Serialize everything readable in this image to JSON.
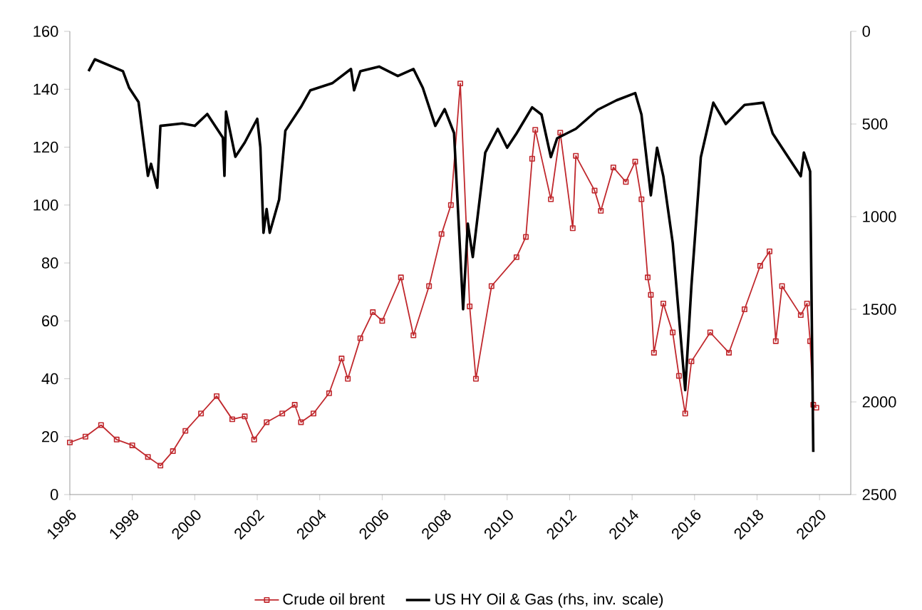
{
  "chart_data": {
    "type": "line",
    "xlim": [
      1996,
      2021
    ],
    "xticks": [
      1996,
      1998,
      2000,
      2002,
      2004,
      2006,
      2008,
      2010,
      2012,
      2014,
      2016,
      2018,
      2020
    ],
    "ylim": [
      0,
      160
    ],
    "yticks": [
      0,
      20,
      40,
      60,
      80,
      100,
      120,
      140,
      160
    ],
    "y2lim": [
      2500,
      0
    ],
    "y2ticks": [
      0,
      500,
      1000,
      1500,
      2000,
      2500
    ],
    "grid": false,
    "legend": "bottom",
    "series": [
      {
        "name": "Crude oil brent",
        "color": "#c0282d",
        "marker": "square",
        "x": [
          1996.0,
          1996.5,
          1997.0,
          1997.5,
          1998.0,
          1998.5,
          1998.9,
          1999.3,
          1999.7,
          2000.2,
          2000.7,
          2001.2,
          2001.6,
          2001.9,
          2002.3,
          2002.8,
          2003.2,
          2003.4,
          2003.8,
          2004.3,
          2004.7,
          2004.9,
          2005.3,
          2005.7,
          2006.0,
          2006.6,
          2007.0,
          2007.5,
          2007.9,
          2008.2,
          2008.5,
          2008.8,
          2009.0,
          2009.5,
          2010.3,
          2010.6,
          2010.8,
          2010.9,
          2011.4,
          2011.7,
          2012.1,
          2012.2,
          2012.8,
          2013.0,
          2013.4,
          2013.8,
          2014.1,
          2014.3,
          2014.5,
          2014.6,
          2014.7,
          2015.0,
          2015.3,
          2015.5,
          2015.7,
          2015.9,
          2016.5,
          2017.1,
          2017.6,
          2018.1,
          2018.4,
          2018.6,
          2018.8,
          2019.4,
          2019.6,
          2019.7,
          2019.8,
          2019.9
        ],
        "values": [
          18,
          20,
          24,
          19,
          17,
          13,
          10,
          15,
          22,
          28,
          34,
          26,
          27,
          19,
          25,
          28,
          31,
          25,
          28,
          35,
          47,
          40,
          54,
          63,
          60,
          75,
          55,
          72,
          90,
          100,
          142,
          65,
          40,
          72,
          82,
          89,
          116,
          126,
          102,
          125,
          92,
          117,
          105,
          98,
          113,
          108,
          115,
          102,
          75,
          69,
          49,
          66,
          56,
          41,
          28,
          46,
          56,
          49,
          64,
          79,
          84,
          53,
          72,
          62,
          66,
          53,
          31,
          30
        ]
      },
      {
        "name": "US HY Oil & Gas (rhs, inv. scale)",
        "color": "#000000",
        "marker": "none",
        "axis": "y2",
        "x": [
          1996.6,
          1996.8,
          1997.7,
          1997.9,
          1998.2,
          1998.5,
          1998.6,
          1998.8,
          1998.9,
          1999.6,
          2000.0,
          2000.4,
          2000.9,
          2000.95,
          2001.0,
          2001.3,
          2001.6,
          2002.0,
          2002.1,
          2002.2,
          2002.3,
          2002.4,
          2002.7,
          2002.9,
          2003.4,
          2003.7,
          2004.4,
          2005.0,
          2005.1,
          2005.3,
          2005.9,
          2006.5,
          2007.0,
          2007.3,
          2007.7,
          2008.0,
          2008.3,
          2008.59,
          2008.74,
          2008.9,
          2009.3,
          2009.7,
          2010.0,
          2010.3,
          2010.8,
          2011.1,
          2011.4,
          2011.6,
          2012.2,
          2012.9,
          2013.5,
          2014.1,
          2014.3,
          2014.6,
          2014.8,
          2015.0,
          2015.3,
          2015.7,
          2015.9,
          2016.2,
          2016.6,
          2017.0,
          2017.6,
          2018.2,
          2018.5,
          2018.9,
          2019.4,
          2019.5,
          2019.7,
          2019.8
        ],
        "values": [
          215,
          151,
          215,
          305,
          382,
          780,
          715,
          844,
          510,
          497,
          510,
          446,
          574,
          780,
          433,
          677,
          600,
          472,
          626,
          1087,
          959,
          1087,
          908,
          536,
          408,
          318,
          280,
          203,
          318,
          215,
          190,
          241,
          203,
          305,
          510,
          420,
          549,
          1500,
          1038,
          1218,
          654,
          526,
          628,
          551,
          410,
          449,
          679,
          577,
          526,
          423,
          372,
          333,
          449,
          885,
          628,
          782,
          1141,
          1936,
          1372,
          679,
          385,
          500,
          397,
          385,
          551,
          654,
          782,
          654,
          756,
          2270
        ]
      }
    ]
  }
}
